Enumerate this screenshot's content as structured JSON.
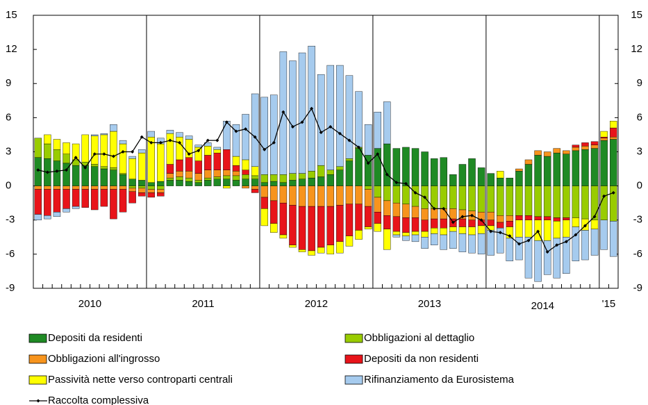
{
  "chart_data": {
    "type": "stacked-bar",
    "categories": [
      null,
      null,
      null,
      null,
      null,
      null,
      "2010",
      null,
      null,
      null,
      null,
      null,
      null,
      null,
      null,
      null,
      null,
      null,
      "2011",
      null,
      null,
      null,
      null,
      null,
      null,
      null,
      null,
      null,
      null,
      null,
      "2012",
      null,
      null,
      null,
      null,
      null,
      null,
      null,
      null,
      null,
      null,
      null,
      "2013",
      null,
      null,
      null,
      null,
      null,
      null,
      null,
      null,
      null,
      null,
      null,
      "2014",
      null,
      null,
      null,
      null,
      null,
      null,
      "'15"
    ],
    "ylim": [
      -9,
      15
    ],
    "yticks": [
      -9,
      -6,
      -3,
      0,
      3,
      6,
      9,
      12,
      15
    ],
    "y2lim": [
      -9,
      15
    ],
    "y2ticks": [
      -9,
      -6,
      -3,
      0,
      3,
      6,
      9,
      12,
      15
    ],
    "series": [
      {
        "name": "Depositi da residenti",
        "color": "#1f8a24",
        "values": [
          2.5,
          2.4,
          2.2,
          2.0,
          1.8,
          1.8,
          1.7,
          1.5,
          1.4,
          1.0,
          0.6,
          0.5,
          0.3,
          0.4,
          0.5,
          0.5,
          0.4,
          0.3,
          0.5,
          0.6,
          0.6,
          0.5,
          0.6,
          0.6,
          0.3,
          0.4,
          0.3,
          0.5,
          0.6,
          0.7,
          0.8,
          1.0,
          1.4,
          2.2,
          3.3,
          2.7,
          3.3,
          3.7,
          3.3,
          3.4,
          3.3,
          3.0,
          2.4,
          2.5,
          1.0,
          1.9,
          2.4,
          1.6,
          1.1,
          0.7,
          0.7,
          1.3,
          1.9,
          2.7,
          2.6,
          2.9,
          2.8,
          3.1,
          3.2,
          3.3,
          4.0,
          4.1
        ]
      },
      {
        "name": "Obbligazioni al dettaglio",
        "color": "#99cc00",
        "values": [
          1.7,
          1.3,
          1.0,
          0.8,
          0.5,
          0.3,
          0.2,
          0.2,
          0.2,
          0.1,
          -0.2,
          -0.2,
          -0.3,
          -0.3,
          0.2,
          0.3,
          0.3,
          0.2,
          0.2,
          0.2,
          0.3,
          0.4,
          0.4,
          0.3,
          0.7,
          0.6,
          0.7,
          0.6,
          0.5,
          0.6,
          1.0,
          0.4,
          0.3,
          0.2,
          0.1,
          -0.3,
          -1.0,
          -1.3,
          -1.5,
          -1.6,
          -1.8,
          -2.0,
          -2.0,
          -2.0,
          -2.0,
          -2.1,
          -2.2,
          -2.3,
          -2.3,
          -2.6,
          -2.6,
          -2.6,
          -2.6,
          -2.7,
          -2.7,
          -2.8,
          -2.8,
          -2.8,
          -2.9,
          -3.0,
          -3.0,
          -3.1
        ]
      },
      {
        "name": "Obbligazioni all'ingrosso",
        "color": "#f7941d",
        "values": [
          -0.3,
          -0.3,
          -0.3,
          -0.3,
          -0.3,
          -0.3,
          -0.3,
          -0.3,
          -0.3,
          -0.3,
          -0.3,
          -0.4,
          -0.3,
          -0.3,
          0.4,
          0.5,
          0.6,
          0.6,
          0.7,
          0.6,
          0.5,
          0.4,
          -0.2,
          -0.3,
          -1.0,
          -1.3,
          -1.5,
          -1.7,
          -1.8,
          -1.8,
          -1.8,
          -1.8,
          -1.7,
          -1.6,
          -1.6,
          -1.5,
          -1.3,
          -1.3,
          -1.2,
          -1.2,
          -1.0,
          -1.0,
          -0.9,
          -0.9,
          -0.9,
          -0.8,
          -0.8,
          -0.7,
          -0.7,
          -0.6,
          -0.5,
          0.2,
          0.4,
          0.4,
          0.4,
          0.4,
          0.3,
          0.3,
          0.3,
          0.3,
          0.2,
          0.2
        ]
      },
      {
        "name": "Depositi da non residenti",
        "color": "#e8141a",
        "values": [
          -2.2,
          -2.3,
          -2.0,
          -1.7,
          -1.5,
          -1.6,
          -1.8,
          -1.5,
          -2.6,
          -2.0,
          -1.0,
          -0.3,
          -0.4,
          -0.3,
          0.8,
          1.0,
          1.2,
          1.1,
          1.3,
          1.5,
          1.8,
          0.5,
          0.4,
          -0.3,
          -1.0,
          -2.0,
          -2.8,
          -3.5,
          -3.8,
          -3.9,
          -3.6,
          -3.4,
          -3.2,
          -2.8,
          -2.3,
          -1.8,
          -1.0,
          -1.2,
          -1.3,
          -1.3,
          -1.2,
          -1.0,
          -0.8,
          -0.8,
          -0.7,
          -0.7,
          -0.6,
          -0.5,
          -0.5,
          -0.5,
          -0.5,
          -0.4,
          -0.4,
          -0.3,
          -0.3,
          -0.3,
          -0.2,
          0.2,
          0.3,
          0.3,
          0.1,
          0.8
        ]
      },
      {
        "name": "Passività nette verso controparti centrali",
        "color": "#ffff00",
        "values": [
          0.0,
          0.8,
          0.9,
          1.0,
          1.4,
          2.4,
          2.5,
          2.8,
          3.2,
          2.6,
          1.8,
          2.4,
          4.0,
          3.3,
          2.7,
          2.0,
          1.6,
          1.2,
          0.8,
          0.3,
          -0.2,
          0.8,
          0.9,
          0.8,
          -1.5,
          -0.8,
          -0.3,
          -0.2,
          -0.2,
          -0.4,
          -0.5,
          -0.8,
          -1.0,
          -0.9,
          -0.8,
          -0.2,
          -0.7,
          -1.8,
          -0.3,
          -0.3,
          -0.3,
          -0.5,
          -0.5,
          -0.6,
          -0.4,
          -0.6,
          -0.7,
          -0.7,
          -0.4,
          0.6,
          -1.0,
          -1.5,
          -1.5,
          -1.8,
          -1.8,
          -1.5,
          -1.5,
          -0.8,
          -1.0,
          -0.8,
          0.5,
          0.6
        ]
      },
      {
        "name": "Rifinanziamento da Eurosistema",
        "color": "#a6cbee",
        "values": [
          -0.5,
          -0.3,
          -0.4,
          -0.3,
          -0.2,
          0.0,
          0.1,
          0.1,
          0.6,
          0.3,
          0.2,
          0.3,
          0.5,
          0.5,
          0.3,
          0.4,
          0.3,
          0.2,
          0.3,
          0.2,
          2.5,
          2.8,
          4.0,
          6.4,
          6.8,
          7.0,
          10.8,
          9.9,
          10.6,
          11.0,
          8.0,
          9.2,
          8.9,
          7.3,
          4.9,
          2.7,
          3.2,
          3.7,
          -0.2,
          -0.4,
          -0.6,
          -1.0,
          -1.0,
          -1.3,
          -1.5,
          -1.6,
          -1.6,
          -1.8,
          -2.2,
          -2.2,
          -2.0,
          -2.0,
          -3.6,
          -3.6,
          -3.0,
          -3.5,
          -3.2,
          -3.0,
          -2.6,
          -2.3,
          -2.6,
          -3.1
        ]
      },
      {
        "name": "Raccolta complessiva",
        "type": "line",
        "color": "#000000",
        "values": [
          1.4,
          1.2,
          1.3,
          1.4,
          2.5,
          1.6,
          2.8,
          2.8,
          2.6,
          3.0,
          3.0,
          4.3,
          3.8,
          3.8,
          4.0,
          3.8,
          2.8,
          3.1,
          4.0,
          4.0,
          5.6,
          4.8,
          5.0,
          4.3,
          3.2,
          3.8,
          6.5,
          5.2,
          5.6,
          6.8,
          4.7,
          5.2,
          4.6,
          4.0,
          3.4,
          2.0,
          2.8,
          1.0,
          0.3,
          0.2,
          -0.6,
          -1.0,
          -2.0,
          -2.0,
          -3.2,
          -2.7,
          -2.6,
          -3.0,
          -4.0,
          -4.1,
          -4.4,
          -5.1,
          -4.8,
          -4.0,
          -5.8,
          -5.2,
          -4.9,
          -4.3,
          -3.5,
          -2.7,
          -0.9,
          -0.6
        ]
      }
    ]
  }
}
